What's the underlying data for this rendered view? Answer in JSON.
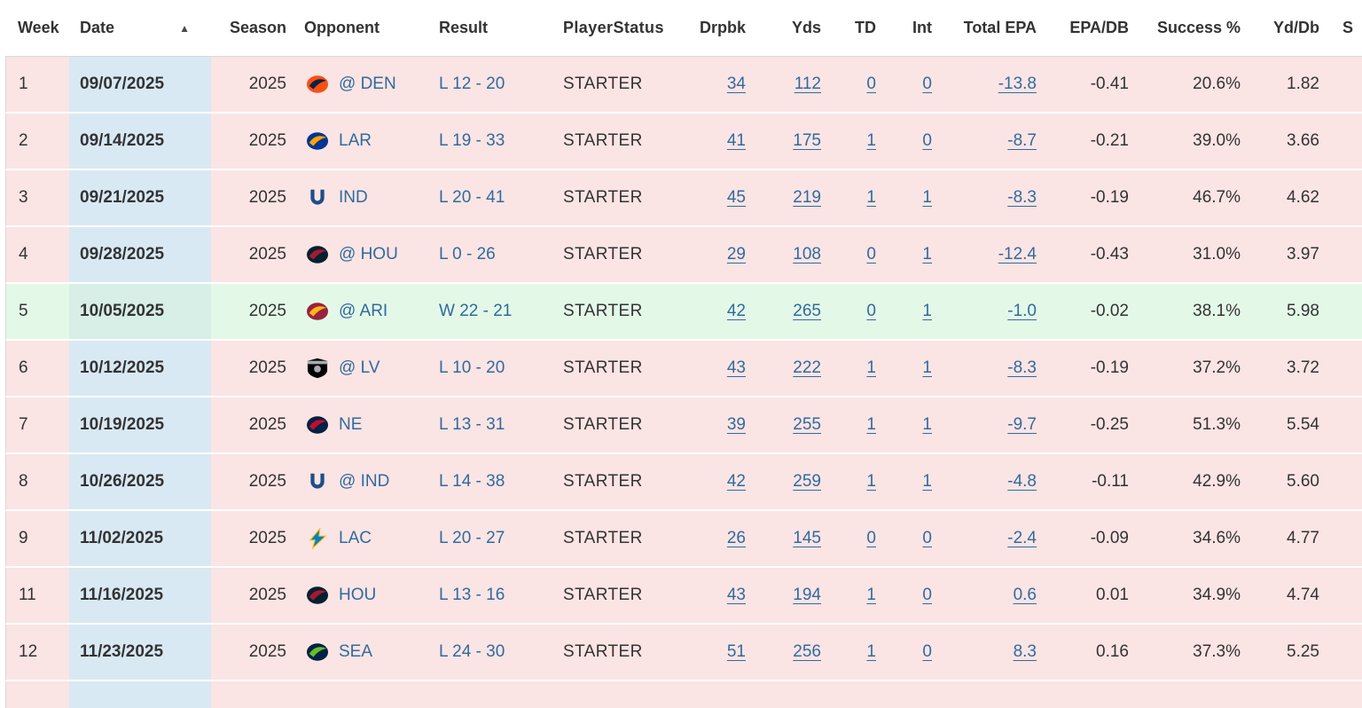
{
  "table": {
    "sort_icon": "▲",
    "columns": [
      {
        "label": "Week"
      },
      {
        "label": "Date"
      },
      {
        "label": "Season"
      },
      {
        "label": "Opponent"
      },
      {
        "label": "Result"
      },
      {
        "label": "PlayerStatus"
      },
      {
        "label": "Drpbk"
      },
      {
        "label": "Yds"
      },
      {
        "label": "TD"
      },
      {
        "label": "Int"
      },
      {
        "label": "Total EPA"
      },
      {
        "label": "EPA/DB"
      },
      {
        "label": "Success %"
      },
      {
        "label": "Yd/Db"
      },
      {
        "label": "S"
      }
    ],
    "rows": [
      {
        "week": "1",
        "date": "09/07/2025",
        "season": "2025",
        "opponent": {
          "label": "@ DEN",
          "team": "broncos"
        },
        "result": "L 12 - 20",
        "status": "STARTER",
        "drpbk": "34",
        "yds": "112",
        "td": "0",
        "int": "0",
        "total_epa": "-13.8",
        "epa_db": "-0.41",
        "success": "20.6%",
        "yd_db": "1.82",
        "outcome": "loss"
      },
      {
        "week": "2",
        "date": "09/14/2025",
        "season": "2025",
        "opponent": {
          "label": "LAR",
          "team": "rams"
        },
        "result": "L 19 - 33",
        "status": "STARTER",
        "drpbk": "41",
        "yds": "175",
        "td": "1",
        "int": "0",
        "total_epa": "-8.7",
        "epa_db": "-0.21",
        "success": "39.0%",
        "yd_db": "3.66",
        "outcome": "loss"
      },
      {
        "week": "3",
        "date": "09/21/2025",
        "season": "2025",
        "opponent": {
          "label": "IND",
          "team": "colts"
        },
        "result": "L 20 - 41",
        "status": "STARTER",
        "drpbk": "45",
        "yds": "219",
        "td": "1",
        "int": "1",
        "total_epa": "-8.3",
        "epa_db": "-0.19",
        "success": "46.7%",
        "yd_db": "4.62",
        "outcome": "loss"
      },
      {
        "week": "4",
        "date": "09/28/2025",
        "season": "2025",
        "opponent": {
          "label": "@ HOU",
          "team": "texans"
        },
        "result": "L 0 - 26",
        "status": "STARTER",
        "drpbk": "29",
        "yds": "108",
        "td": "0",
        "int": "1",
        "total_epa": "-12.4",
        "epa_db": "-0.43",
        "success": "31.0%",
        "yd_db": "3.97",
        "outcome": "loss"
      },
      {
        "week": "5",
        "date": "10/05/2025",
        "season": "2025",
        "opponent": {
          "label": "@ ARI",
          "team": "cardinals"
        },
        "result": "W 22 - 21",
        "status": "STARTER",
        "drpbk": "42",
        "yds": "265",
        "td": "0",
        "int": "1",
        "total_epa": "-1.0",
        "epa_db": "-0.02",
        "success": "38.1%",
        "yd_db": "5.98",
        "outcome": "win"
      },
      {
        "week": "6",
        "date": "10/12/2025",
        "season": "2025",
        "opponent": {
          "label": "@ LV",
          "team": "raiders"
        },
        "result": "L 10 - 20",
        "status": "STARTER",
        "drpbk": "43",
        "yds": "222",
        "td": "1",
        "int": "1",
        "total_epa": "-8.3",
        "epa_db": "-0.19",
        "success": "37.2%",
        "yd_db": "3.72",
        "outcome": "loss"
      },
      {
        "week": "7",
        "date": "10/19/2025",
        "season": "2025",
        "opponent": {
          "label": "NE",
          "team": "patriots"
        },
        "result": "L 13 - 31",
        "status": "STARTER",
        "drpbk": "39",
        "yds": "255",
        "td": "1",
        "int": "1",
        "total_epa": "-9.7",
        "epa_db": "-0.25",
        "success": "51.3%",
        "yd_db": "5.54",
        "outcome": "loss"
      },
      {
        "week": "8",
        "date": "10/26/2025",
        "season": "2025",
        "opponent": {
          "label": "@ IND",
          "team": "colts"
        },
        "result": "L 14 - 38",
        "status": "STARTER",
        "drpbk": "42",
        "yds": "259",
        "td": "1",
        "int": "1",
        "total_epa": "-4.8",
        "epa_db": "-0.11",
        "success": "42.9%",
        "yd_db": "5.60",
        "outcome": "loss"
      },
      {
        "week": "9",
        "date": "11/02/2025",
        "season": "2025",
        "opponent": {
          "label": "LAC",
          "team": "chargers"
        },
        "result": "L 20 - 27",
        "status": "STARTER",
        "drpbk": "26",
        "yds": "145",
        "td": "0",
        "int": "0",
        "total_epa": "-2.4",
        "epa_db": "-0.09",
        "success": "34.6%",
        "yd_db": "4.77",
        "outcome": "loss"
      },
      {
        "week": "11",
        "date": "11/16/2025",
        "season": "2025",
        "opponent": {
          "label": "HOU",
          "team": "texans"
        },
        "result": "L 13 - 16",
        "status": "STARTER",
        "drpbk": "43",
        "yds": "194",
        "td": "1",
        "int": "0",
        "total_epa": "0.6",
        "epa_db": "0.01",
        "success": "34.9%",
        "yd_db": "4.74",
        "outcome": "loss"
      },
      {
        "week": "12",
        "date": "11/23/2025",
        "season": "2025",
        "opponent": {
          "label": "SEA",
          "team": "seahawks"
        },
        "result": "L 24 - 30",
        "status": "STARTER",
        "drpbk": "51",
        "yds": "256",
        "td": "1",
        "int": "0",
        "total_epa": "8.3",
        "epa_db": "0.16",
        "success": "37.3%",
        "yd_db": "5.25",
        "outcome": "loss"
      }
    ]
  },
  "teams": {
    "broncos": {
      "icon": "broncos-logo",
      "glyph": "mark",
      "primary": "#FB4F14",
      "secondary": "#0A2343"
    },
    "rams": {
      "icon": "rams-logo",
      "glyph": "mark",
      "primary": "#003594",
      "secondary": "#FFA300"
    },
    "colts": {
      "icon": "colts-logo",
      "glyph": "horseshoe",
      "primary": "#1D4E89",
      "secondary": "#FFFFFF"
    },
    "texans": {
      "icon": "texans-logo",
      "glyph": "mark",
      "primary": "#03202F",
      "secondary": "#A71930"
    },
    "cardinals": {
      "icon": "cardinals-logo",
      "glyph": "mark",
      "primary": "#97233F",
      "secondary": "#FFB612"
    },
    "raiders": {
      "icon": "raiders-logo",
      "glyph": "shield",
      "primary": "#000000",
      "secondary": "#A5ACAF"
    },
    "patriots": {
      "icon": "patriots-logo",
      "glyph": "mark",
      "primary": "#002244",
      "secondary": "#C60C30"
    },
    "chargers": {
      "icon": "chargers-logo",
      "glyph": "bolt",
      "primary": "#0080C6",
      "secondary": "#FFC20E"
    },
    "seahawks": {
      "icon": "seahawks-logo",
      "glyph": "mark",
      "primary": "#002244",
      "secondary": "#69BE28"
    }
  },
  "colors": {
    "loss_row": "#fbe4e4",
    "win_row": "#e4f8e8",
    "date_column_loss": "#d9e9f4",
    "date_column_win": "#d7efe6",
    "link_blue": "#2f6b9d",
    "text": "#333333"
  }
}
